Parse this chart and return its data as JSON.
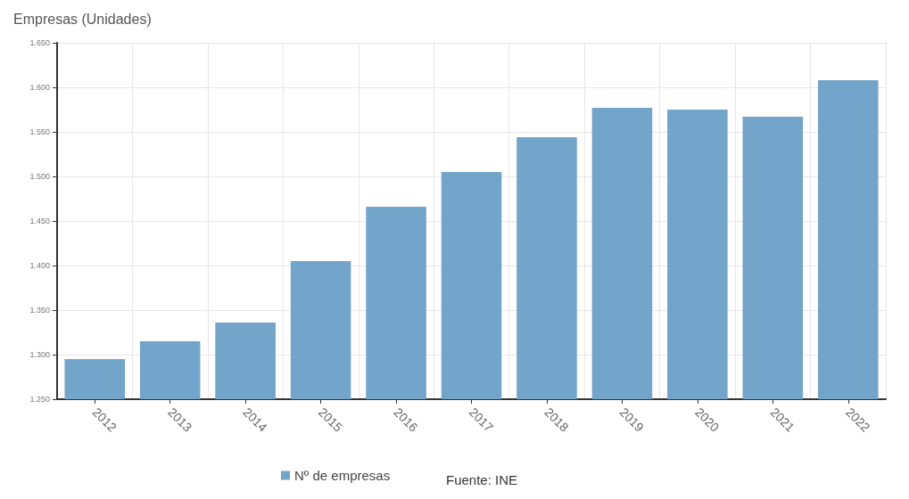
{
  "chart_data": {
    "type": "bar",
    "ylabel": "Empresas (Unidades)",
    "categories": [
      "2012",
      "2013",
      "2014",
      "2015",
      "2016",
      "2017",
      "2018",
      "2019",
      "2020",
      "2021",
      "2022"
    ],
    "series": [
      {
        "name": "Nº de empresas",
        "color": "#73a4c9",
        "values": [
          1295,
          1315,
          1336,
          1405,
          1466,
          1505,
          1544,
          1577,
          1575,
          1567,
          1608
        ]
      }
    ],
    "ylim": [
      1250,
      1650
    ],
    "yticks": [
      {
        "value": 1250,
        "label": "1.250"
      },
      {
        "value": 1300,
        "label": "1.300"
      },
      {
        "value": 1350,
        "label": "1.350"
      },
      {
        "value": 1400,
        "label": "1.400"
      },
      {
        "value": 1450,
        "label": "1.450"
      },
      {
        "value": 1500,
        "label": "1.500"
      },
      {
        "value": 1550,
        "label": "1.550"
      },
      {
        "value": 1600,
        "label": "1.600"
      },
      {
        "value": 1650,
        "label": "1.650"
      }
    ],
    "grid": true,
    "legend": "bottom",
    "annotations": [
      "Fuente: INE"
    ]
  }
}
